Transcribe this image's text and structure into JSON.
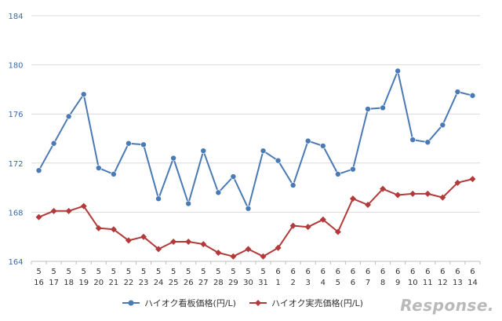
{
  "chart_data": {
    "type": "line",
    "title": "",
    "xlabel": "",
    "ylabel": "",
    "ylim": [
      164,
      184
    ],
    "yticks": [
      164,
      168,
      172,
      176,
      180,
      184
    ],
    "grid": true,
    "legend_position": "bottom",
    "categories_month": [
      "5",
      "5",
      "5",
      "5",
      "5",
      "5",
      "5",
      "5",
      "5",
      "5",
      "5",
      "5",
      "5",
      "5",
      "5",
      "5",
      "6",
      "6",
      "6",
      "6",
      "6",
      "6",
      "6",
      "6",
      "6",
      "6",
      "6",
      "6",
      "6",
      "6"
    ],
    "categories_day": [
      "16",
      "17",
      "18",
      "19",
      "20",
      "21",
      "22",
      "23",
      "24",
      "25",
      "26",
      "27",
      "28",
      "29",
      "30",
      "31",
      "1",
      "2",
      "3",
      "4",
      "5",
      "6",
      "7",
      "8",
      "9",
      "10",
      "11",
      "12",
      "13",
      "14"
    ],
    "series": [
      {
        "name": "ハイオク看板価格(円/L)",
        "color": "#4a7ab5",
        "marker": "circle",
        "values": [
          171.4,
          173.6,
          175.8,
          177.6,
          171.6,
          171.1,
          173.6,
          173.5,
          169.1,
          172.4,
          168.7,
          173.0,
          169.6,
          170.9,
          168.3,
          173.0,
          172.2,
          170.2,
          173.8,
          173.4,
          171.1,
          171.5,
          176.4,
          176.5,
          179.5,
          173.9,
          173.7,
          175.1,
          177.8,
          177.5
        ]
      },
      {
        "name": "ハイオク実売価格(円/L)",
        "color": "#b23a3a",
        "marker": "diamond",
        "values": [
          167.6,
          168.1,
          168.1,
          168.5,
          166.7,
          166.6,
          165.7,
          166.0,
          165.0,
          165.6,
          165.6,
          165.4,
          164.7,
          164.4,
          165.0,
          164.4,
          165.1,
          166.9,
          166.8,
          167.4,
          166.4,
          169.1,
          168.6,
          169.9,
          169.4,
          169.5,
          169.5,
          169.2,
          170.4,
          170.7
        ]
      }
    ]
  },
  "watermark": "Response."
}
